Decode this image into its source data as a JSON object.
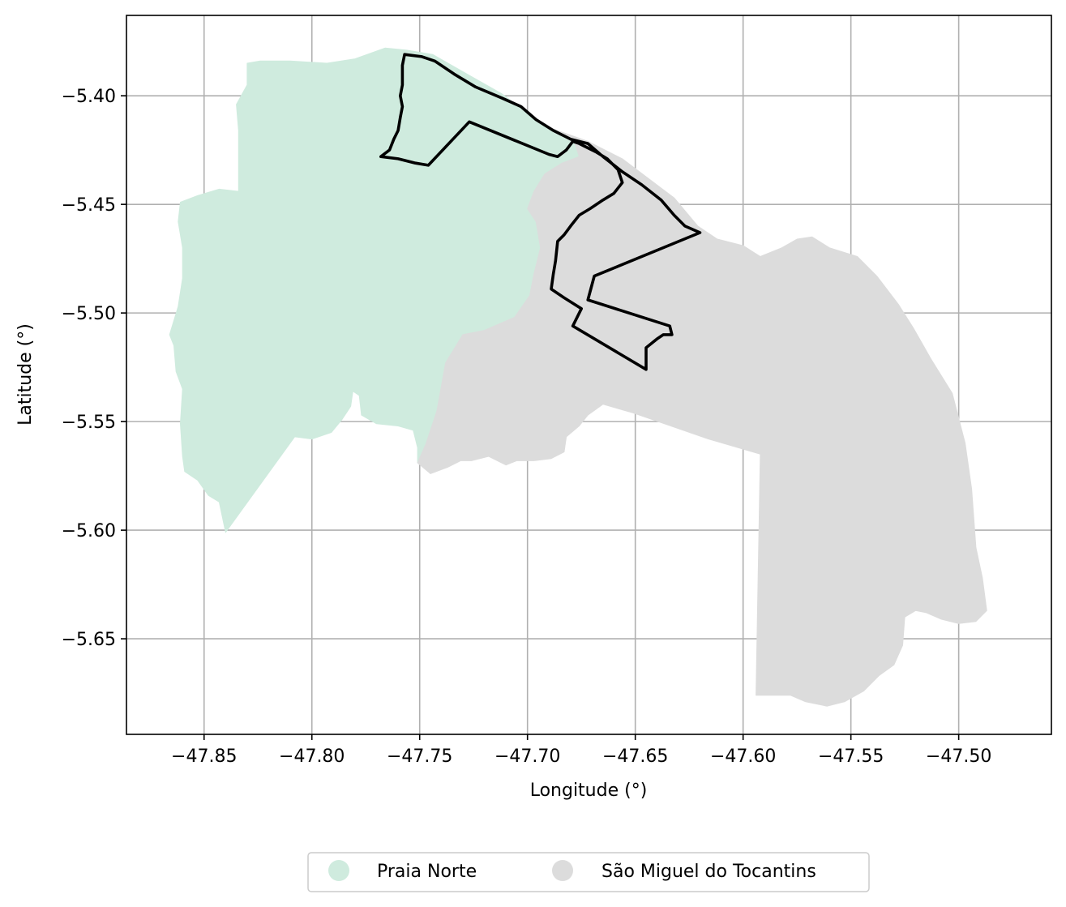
{
  "map": {
    "xlabel": "Longitude (°)",
    "ylabel": "Latitude (°)",
    "xlim": [
      -47.886,
      -47.457
    ],
    "ylim": [
      -5.694,
      -5.363
    ],
    "grid": true,
    "x_ticks": [
      {
        "value": -47.85,
        "label": "−47.85"
      },
      {
        "value": -47.8,
        "label": "−47.80"
      },
      {
        "value": -47.75,
        "label": "−47.75"
      },
      {
        "value": -47.7,
        "label": "−47.70"
      },
      {
        "value": -47.65,
        "label": "−47.65"
      },
      {
        "value": -47.6,
        "label": "−47.60"
      },
      {
        "value": -47.55,
        "label": "−47.55"
      },
      {
        "value": -47.5,
        "label": "−47.50"
      }
    ],
    "y_ticks": [
      {
        "value": -5.4,
        "label": "−5.40"
      },
      {
        "value": -5.45,
        "label": "−5.45"
      },
      {
        "value": -5.5,
        "label": "−5.50"
      },
      {
        "value": -5.55,
        "label": "−5.55"
      },
      {
        "value": -5.6,
        "label": "−5.60"
      },
      {
        "value": -5.65,
        "label": "−5.65"
      }
    ],
    "legend_placement": "bottom-center",
    "regions": [
      {
        "name": "Praia Norte",
        "color": "#cfebde",
        "polygon": [
          [
            -47.756,
            -5.379
          ],
          [
            -47.744,
            -5.381
          ],
          [
            -47.728,
            -5.39
          ],
          [
            -47.712,
            -5.399
          ],
          [
            -47.696,
            -5.411
          ],
          [
            -47.688,
            -5.417
          ],
          [
            -47.68,
            -5.421
          ],
          [
            -47.672,
            -5.427
          ],
          [
            -47.682,
            -5.431
          ],
          [
            -47.69,
            -5.436
          ],
          [
            -47.695,
            -5.445
          ],
          [
            -47.697,
            -5.452
          ],
          [
            -47.694,
            -5.458
          ],
          [
            -47.691,
            -5.47
          ],
          [
            -47.694,
            -5.48
          ],
          [
            -47.698,
            -5.492
          ],
          [
            -47.706,
            -5.502
          ],
          [
            -47.718,
            -5.508
          ],
          [
            -47.726,
            -5.511
          ],
          [
            -47.732,
            -5.524
          ],
          [
            -47.736,
            -5.545
          ],
          [
            -47.742,
            -5.56
          ],
          [
            -47.747,
            -5.57
          ],
          [
            -47.751,
            -5.569
          ],
          [
            -47.751,
            -5.562
          ],
          [
            -47.753,
            -5.554
          ],
          [
            -47.76,
            -5.552
          ],
          [
            -47.77,
            -5.551
          ],
          [
            -47.777,
            -5.547
          ],
          [
            -47.778,
            -5.538
          ],
          [
            -47.781,
            -5.536
          ],
          [
            -47.782,
            -5.543
          ],
          [
            -47.786,
            -5.549
          ],
          [
            -47.791,
            -5.555
          ],
          [
            -47.8,
            -5.558
          ],
          [
            -47.808,
            -5.557
          ],
          [
            -47.84,
            -5.601
          ],
          [
            -47.843,
            -5.587
          ],
          [
            -47.848,
            -5.584
          ],
          [
            -47.853,
            -5.577
          ],
          [
            -47.859,
            -5.573
          ],
          [
            -47.86,
            -5.566
          ],
          [
            -47.861,
            -5.551
          ],
          [
            -47.86,
            -5.535
          ],
          [
            -47.863,
            -5.527
          ],
          [
            -47.864,
            -5.515
          ],
          [
            -47.866,
            -5.51
          ],
          [
            -47.862,
            -5.497
          ],
          [
            -47.86,
            -5.484
          ],
          [
            -47.86,
            -5.47
          ],
          [
            -47.862,
            -5.458
          ],
          [
            -47.861,
            -5.449
          ],
          [
            -47.853,
            -5.446
          ],
          [
            -47.843,
            -5.443
          ],
          [
            -47.834,
            -5.444
          ],
          [
            -47.834,
            -5.432
          ],
          [
            -47.834,
            -5.416
          ],
          [
            -47.835,
            -5.404
          ],
          [
            -47.83,
            -5.395
          ],
          [
            -47.83,
            -5.385
          ],
          [
            -47.824,
            -5.384
          ],
          [
            -47.81,
            -5.384
          ],
          [
            -47.793,
            -5.385
          ],
          [
            -47.78,
            -5.383
          ],
          [
            -47.766,
            -5.378
          ],
          [
            -47.756,
            -5.379
          ]
        ]
      },
      {
        "name": "São Miguel do Tocantins",
        "color": "#dcdcdc",
        "polygon": [
          [
            -47.689,
            -5.415
          ],
          [
            -47.672,
            -5.421
          ],
          [
            -47.656,
            -5.429
          ],
          [
            -47.644,
            -5.438
          ],
          [
            -47.632,
            -5.447
          ],
          [
            -47.621,
            -5.46
          ],
          [
            -47.612,
            -5.466
          ],
          [
            -47.6,
            -5.469
          ],
          [
            -47.592,
            -5.474
          ],
          [
            -47.582,
            -5.47
          ],
          [
            -47.575,
            -5.466
          ],
          [
            -47.568,
            -5.465
          ],
          [
            -47.56,
            -5.47
          ],
          [
            -47.547,
            -5.474
          ],
          [
            -47.538,
            -5.483
          ],
          [
            -47.528,
            -5.496
          ],
          [
            -47.521,
            -5.507
          ],
          [
            -47.513,
            -5.521
          ],
          [
            -47.503,
            -5.537
          ],
          [
            -47.497,
            -5.56
          ],
          [
            -47.494,
            -5.581
          ],
          [
            -47.492,
            -5.608
          ],
          [
            -47.489,
            -5.622
          ],
          [
            -47.487,
            -5.637
          ],
          [
            -47.492,
            -5.642
          ],
          [
            -47.5,
            -5.643
          ],
          [
            -47.508,
            -5.641
          ],
          [
            -47.515,
            -5.638
          ],
          [
            -47.52,
            -5.637
          ],
          [
            -47.525,
            -5.64
          ],
          [
            -47.526,
            -5.653
          ],
          [
            -47.53,
            -5.662
          ],
          [
            -47.537,
            -5.667
          ],
          [
            -47.544,
            -5.674
          ],
          [
            -47.553,
            -5.679
          ],
          [
            -47.561,
            -5.681
          ],
          [
            -47.571,
            -5.679
          ],
          [
            -47.578,
            -5.676
          ],
          [
            -47.587,
            -5.676
          ],
          [
            -47.594,
            -5.676
          ],
          [
            -47.592,
            -5.565
          ],
          [
            -47.616,
            -5.558
          ],
          [
            -47.651,
            -5.546
          ],
          [
            -47.665,
            -5.542
          ],
          [
            -47.672,
            -5.547
          ],
          [
            -47.676,
            -5.552
          ],
          [
            -47.682,
            -5.557
          ],
          [
            -47.683,
            -5.564
          ],
          [
            -47.689,
            -5.567
          ],
          [
            -47.697,
            -5.568
          ],
          [
            -47.705,
            -5.568
          ],
          [
            -47.71,
            -5.57
          ],
          [
            -47.718,
            -5.566
          ],
          [
            -47.726,
            -5.568
          ],
          [
            -47.731,
            -5.568
          ],
          [
            -47.737,
            -5.571
          ],
          [
            -47.745,
            -5.574
          ],
          [
            -47.751,
            -5.569
          ],
          [
            -47.747,
            -5.56
          ],
          [
            -47.742,
            -5.545
          ],
          [
            -47.738,
            -5.523
          ],
          [
            -47.73,
            -5.51
          ],
          [
            -47.72,
            -5.508
          ],
          [
            -47.706,
            -5.502
          ],
          [
            -47.699,
            -5.492
          ],
          [
            -47.697,
            -5.482
          ],
          [
            -47.694,
            -5.47
          ],
          [
            -47.696,
            -5.458
          ],
          [
            -47.7,
            -5.452
          ],
          [
            -47.697,
            -5.444
          ],
          [
            -47.692,
            -5.436
          ],
          [
            -47.684,
            -5.431
          ],
          [
            -47.676,
            -5.428
          ],
          [
            -47.678,
            -5.422
          ],
          [
            -47.689,
            -5.415
          ]
        ]
      }
    ],
    "route": [
      [
        -47.757,
        -5.381
      ],
      [
        -47.749,
        -5.382
      ],
      [
        -47.743,
        -5.384
      ],
      [
        -47.734,
        -5.39
      ],
      [
        -47.724,
        -5.396
      ],
      [
        -47.712,
        -5.401
      ],
      [
        -47.703,
        -5.405
      ],
      [
        -47.696,
        -5.411
      ],
      [
        -47.688,
        -5.416
      ],
      [
        -47.68,
        -5.42
      ],
      [
        -47.672,
        -5.422
      ],
      [
        -47.665,
        -5.428
      ],
      [
        -47.656,
        -5.435
      ],
      [
        -47.647,
        -5.441
      ],
      [
        -47.638,
        -5.448
      ],
      [
        -47.632,
        -5.455
      ],
      [
        -47.627,
        -5.46
      ],
      [
        -47.62,
        -5.463
      ],
      [
        -47.669,
        -5.483
      ],
      [
        -47.672,
        -5.494
      ],
      [
        -47.634,
        -5.506
      ],
      [
        -47.633,
        -5.51
      ],
      [
        -47.637,
        -5.51
      ],
      [
        -47.64,
        -5.512
      ],
      [
        -47.645,
        -5.516
      ],
      [
        -47.645,
        -5.522
      ],
      [
        -47.645,
        -5.526
      ],
      [
        -47.679,
        -5.506
      ],
      [
        -47.675,
        -5.498
      ],
      [
        -47.683,
        -5.493
      ],
      [
        -47.689,
        -5.489
      ],
      [
        -47.688,
        -5.482
      ],
      [
        -47.687,
        -5.476
      ],
      [
        -47.686,
        -5.467
      ],
      [
        -47.683,
        -5.464
      ],
      [
        -47.68,
        -5.46
      ],
      [
        -47.676,
        -5.455
      ],
      [
        -47.671,
        -5.452
      ],
      [
        -47.665,
        -5.448
      ],
      [
        -47.66,
        -5.445
      ],
      [
        -47.656,
        -5.44
      ],
      [
        -47.658,
        -5.434
      ],
      [
        -47.663,
        -5.429
      ],
      [
        -47.668,
        -5.426
      ],
      [
        -47.672,
        -5.424
      ],
      [
        -47.676,
        -5.422
      ],
      [
        -47.679,
        -5.421
      ],
      [
        -47.682,
        -5.425
      ],
      [
        -47.686,
        -5.428
      ],
      [
        -47.69,
        -5.427
      ],
      [
        -47.727,
        -5.412
      ],
      [
        -47.746,
        -5.432
      ],
      [
        -47.752,
        -5.431
      ],
      [
        -47.76,
        -5.429
      ],
      [
        -47.768,
        -5.428
      ],
      [
        -47.764,
        -5.425
      ],
      [
        -47.762,
        -5.42
      ],
      [
        -47.76,
        -5.416
      ],
      [
        -47.759,
        -5.41
      ],
      [
        -47.758,
        -5.405
      ],
      [
        -47.759,
        -5.4
      ],
      [
        -47.758,
        -5.395
      ],
      [
        -47.758,
        -5.39
      ],
      [
        -47.758,
        -5.386
      ],
      [
        -47.757,
        -5.381
      ]
    ],
    "route_color": "#000000"
  },
  "legend": {
    "items": [
      {
        "label": "Praia Norte",
        "color": "#cfebde"
      },
      {
        "label": "São Miguel do Tocantins",
        "color": "#dcdcdc"
      }
    ]
  }
}
